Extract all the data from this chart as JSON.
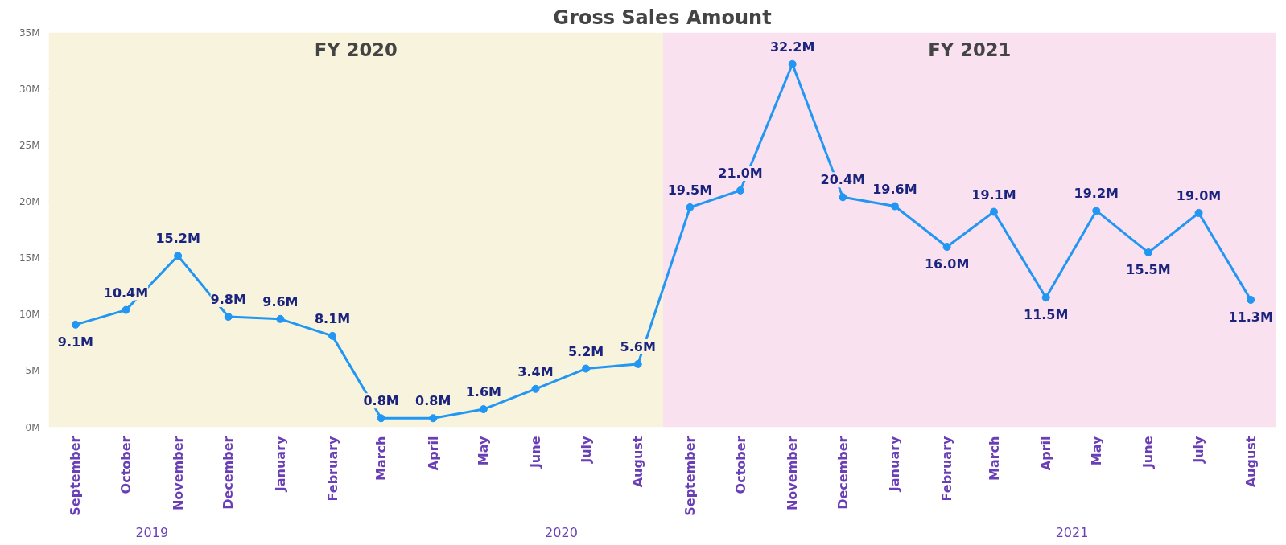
{
  "chart_data": {
    "type": "line",
    "title": "Gross Sales Amount",
    "x": [
      "2019-09",
      "2019-10",
      "2019-11",
      "2019-12",
      "2020-01",
      "2020-02",
      "2020-03",
      "2020-04",
      "2020-05",
      "2020-06",
      "2020-07",
      "2020-08",
      "2020-09",
      "2020-10",
      "2020-11",
      "2020-12",
      "2021-01",
      "2021-02",
      "2021-03",
      "2021-04",
      "2021-05",
      "2021-06",
      "2021-07",
      "2021-08"
    ],
    "series": [
      {
        "color": "#2196f3",
        "values": [
          9100000,
          10400000,
          15200000,
          9800000,
          9600000,
          8100000,
          800000,
          800000,
          1600000,
          3400000,
          5200000,
          5600000,
          19500000,
          21000000,
          32200000,
          20400000,
          19600000,
          16000000,
          19100000,
          11500000,
          19200000,
          15500000,
          19000000,
          11300000
        ],
        "value_labels": [
          "9.1M",
          "10.4M",
          "15.2M",
          "9.8M",
          "9.6M",
          "8.1M",
          "0.8M",
          "0.8M",
          "1.6M",
          "3.4M",
          "5.2M",
          "5.6M",
          "19.5M",
          "21.0M",
          "32.2M",
          "20.4M",
          "19.6M",
          "16.0M",
          "19.1M",
          "11.5M",
          "19.2M",
          "15.5M",
          "19.0M",
          "11.3M"
        ]
      }
    ],
    "xlim": [
      "2019-08-16",
      "2021-08-16"
    ],
    "xticks": [
      {
        "value": "2019-09",
        "label": "September"
      },
      {
        "value": "2019-10",
        "label": "October"
      },
      {
        "value": "2019-11",
        "label": "November"
      },
      {
        "value": "2019-12",
        "label": "December"
      },
      {
        "value": "2020-01",
        "label": "January"
      },
      {
        "value": "2020-02",
        "label": "February"
      },
      {
        "value": "2020-03",
        "label": "March"
      },
      {
        "value": "2020-04",
        "label": "April"
      },
      {
        "value": "2020-05",
        "label": "May"
      },
      {
        "value": "2020-06",
        "label": "June"
      },
      {
        "value": "2020-07",
        "label": "July"
      },
      {
        "value": "2020-08",
        "label": "August"
      },
      {
        "value": "2020-09",
        "label": "September"
      },
      {
        "value": "2020-10",
        "label": "October"
      },
      {
        "value": "2020-11",
        "label": "November"
      },
      {
        "value": "2020-12",
        "label": "December"
      },
      {
        "value": "2021-01",
        "label": "January"
      },
      {
        "value": "2021-02",
        "label": "February"
      },
      {
        "value": "2021-03",
        "label": "March"
      },
      {
        "value": "2021-04",
        "label": "April"
      },
      {
        "value": "2021-05",
        "label": "May"
      },
      {
        "value": "2021-06",
        "label": "June"
      },
      {
        "value": "2021-07",
        "label": "July"
      },
      {
        "value": "2021-08",
        "label": "August"
      }
    ],
    "ylim": [
      0,
      35000000
    ],
    "yticks": [
      {
        "value": 0,
        "label": "0M"
      },
      {
        "value": 5000000,
        "label": "5M"
      },
      {
        "value": 10000000,
        "label": "10M"
      },
      {
        "value": 15000000,
        "label": "15M"
      },
      {
        "value": 20000000,
        "label": "20M"
      },
      {
        "value": 25000000,
        "label": "25M"
      },
      {
        "value": 30000000,
        "label": "30M"
      },
      {
        "value": 35000000,
        "label": "35M"
      }
    ],
    "bands": [
      {
        "axis": "x",
        "from": "2019-08-16",
        "to": "2020-08-16",
        "label": "FY 2020",
        "color": "#f8f3dc"
      },
      {
        "axis": "x",
        "from": "2020-08-16",
        "to": "2021-08-16",
        "label": "FY 2021",
        "color": "#f9e1ef"
      }
    ],
    "annotations": [
      "2019",
      "2020",
      "2021"
    ],
    "grid": "y",
    "marker": "circle",
    "line_style": "solid"
  }
}
